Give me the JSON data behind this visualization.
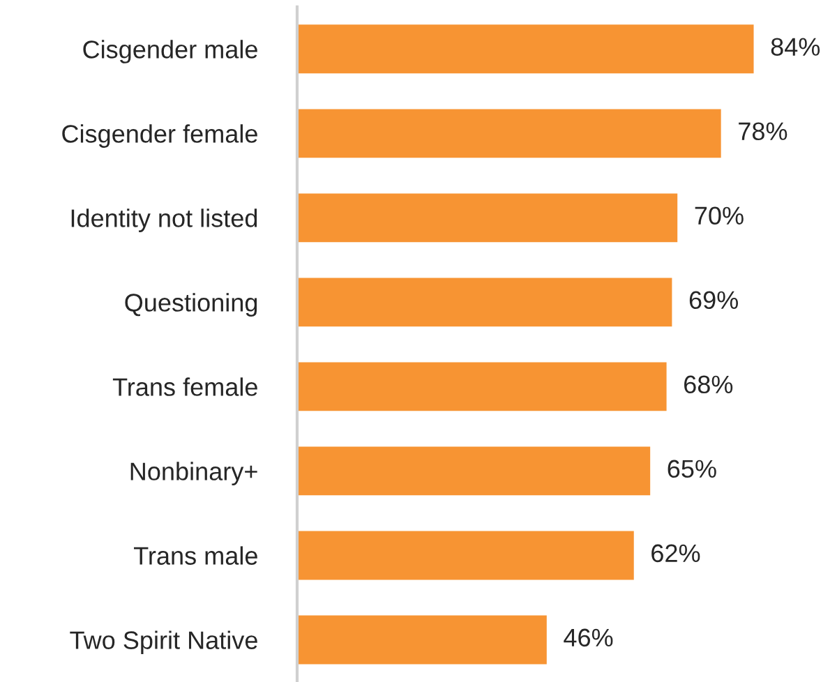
{
  "chart_data": {
    "type": "bar",
    "orientation": "horizontal",
    "categories": [
      "Cisgender male",
      "Cisgender female",
      "Identity not listed",
      "Questioning",
      "Trans female",
      "Nonbinary+",
      "Trans male",
      "Two Spirit Native"
    ],
    "values": [
      84,
      78,
      70,
      69,
      68,
      65,
      62,
      46
    ],
    "value_labels": [
      "84%",
      "78%",
      "70%",
      "69%",
      "68%",
      "65%",
      "62%",
      "46%"
    ],
    "color": "#f79433",
    "grid": false,
    "legend": false
  }
}
